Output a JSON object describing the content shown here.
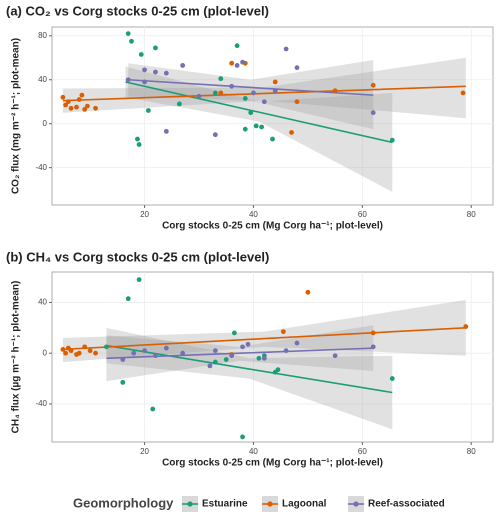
{
  "chart_data": [
    {
      "type": "scatter",
      "title": "(a) CO₂ vs Corg stocks 0-25 cm (plot-level)",
      "x_label": "Corg stocks 0-25 cm (Mg Corg ha⁻¹; plot-level)",
      "y_label": "CO₂ flux (mg m⁻² h⁻¹; plot-mean)",
      "xlim": [
        3,
        84
      ],
      "ylim": [
        -74,
        88
      ],
      "xticks": [
        20,
        40,
        60,
        80
      ],
      "yticks": [
        -40,
        0,
        40,
        80
      ],
      "grid": true,
      "series": [
        {
          "name": "Estuarine",
          "color": "#1b9e77",
          "x": [
            17,
            17.6,
            19.4,
            22,
            18.7,
            19,
            20.7,
            26.4,
            37,
            34,
            38.5,
            38.5,
            39.5,
            40.5,
            41.5,
            43.5,
            65.5,
            33
          ],
          "values": [
            82,
            75,
            63,
            69,
            -14,
            -19,
            12,
            18,
            71,
            41,
            23,
            -5,
            10,
            -2,
            -3,
            -14,
            -15,
            28
          ],
          "fit": {
            "x": [
              16.5,
              41,
              65.5
            ],
            "values": [
              38,
              10.5,
              -17
            ],
            "lower": [
              24,
              2,
              -62
            ],
            "upper": [
              52,
              20,
              28
            ]
          }
        },
        {
          "name": "Lagoonal",
          "color": "#d95f02",
          "x": [
            5,
            5.5,
            6,
            6.5,
            7.5,
            8,
            8.5,
            9,
            9.5,
            11,
            36,
            38.5,
            44,
            47,
            48,
            55,
            62,
            78.5,
            34
          ],
          "values": [
            24,
            17,
            20,
            14,
            15,
            22,
            26,
            13,
            16,
            14,
            55,
            55,
            38,
            -8,
            20,
            30,
            35,
            28,
            28
          ],
          "fit": {
            "x": [
              5,
              42,
              79
            ],
            "values": [
              21,
              27.5,
              34
            ],
            "lower": [
              10,
              21,
              5
            ],
            "upper": [
              32,
              33,
              60
            ]
          }
        },
        {
          "name": "Reef-associated",
          "color": "#7570b3",
          "x": [
            17,
            20,
            22,
            24,
            27,
            24,
            33,
            37,
            38,
            40,
            46,
            48,
            36,
            42,
            44,
            62,
            30,
            20
          ],
          "values": [
            40,
            49,
            47,
            46,
            53,
            -7,
            -10,
            53,
            56,
            28,
            68,
            51,
            34,
            20,
            30,
            10,
            25,
            38
          ],
          "fit": {
            "x": [
              17,
              39.5,
              62
            ],
            "values": [
              40,
              33,
              26
            ],
            "lower": [
              25,
              21,
              -5
            ],
            "upper": [
              55,
              40,
              58
            ]
          }
        }
      ]
    },
    {
      "type": "scatter",
      "title": "(b) CH₄ vs Corg stocks 0-25 cm (plot-level)",
      "x_label": "Corg stocks 0-25 cm (Mg Corg ha⁻¹; plot-level)",
      "y_label": "CH₄ flux (µg m⁻² h⁻¹; plot-mean)",
      "xlim": [
        3,
        84
      ],
      "ylim": [
        -70,
        64
      ],
      "xticks": [
        20,
        40,
        60,
        80
      ],
      "yticks": [
        -40,
        0,
        40
      ],
      "grid": true,
      "series": [
        {
          "name": "Estuarine",
          "color": "#1b9e77",
          "x": [
            17,
            19,
            16,
            21.5,
            36.5,
            38,
            41,
            42,
            44,
            44.5,
            33,
            35,
            65.5,
            13
          ],
          "values": [
            43,
            58,
            -23,
            -44,
            16,
            -66,
            -4,
            -2,
            -15,
            -13,
            -7,
            -5,
            -20,
            5
          ],
          "fit": {
            "x": [
              13,
              39.25,
              65.5
            ],
            "values": [
              6,
              -12.5,
              -31
            ],
            "lower": [
              -8,
              -20,
              -60
            ],
            "upper": [
              20,
              -4,
              -2
            ]
          }
        },
        {
          "name": "Lagoonal",
          "color": "#d95f02",
          "x": [
            5,
            5.5,
            6,
            6.5,
            7.5,
            8,
            9,
            10,
            11,
            45.5,
            50,
            62,
            79,
            36
          ],
          "values": [
            3,
            0,
            4,
            2,
            -1,
            0,
            5,
            2,
            0,
            17,
            48,
            16,
            21,
            -1
          ],
          "fit": {
            "x": [
              5,
              42,
              79
            ],
            "values": [
              3,
              11.5,
              20
            ],
            "lower": [
              -7,
              5,
              -2
            ],
            "upper": [
              12,
              17,
              42
            ]
          }
        },
        {
          "name": "Reef-associated",
          "color": "#7570b3",
          "x": [
            16,
            18,
            20,
            22,
            24,
            27,
            32,
            33,
            36,
            38,
            39,
            42,
            46,
            48,
            55,
            62
          ],
          "values": [
            -5,
            0,
            2,
            -2,
            4,
            0,
            -10,
            2,
            -2,
            5,
            7,
            -4,
            2,
            8,
            -2,
            5
          ],
          "fit": {
            "x": [
              13,
              37.5,
              62
            ],
            "values": [
              -4,
              0,
              4
            ],
            "lower": [
              -22,
              -6,
              -14
            ],
            "upper": [
              14,
              5,
              22
            ]
          }
        }
      ]
    }
  ],
  "legend": {
    "title": "Geomorphology"
  }
}
